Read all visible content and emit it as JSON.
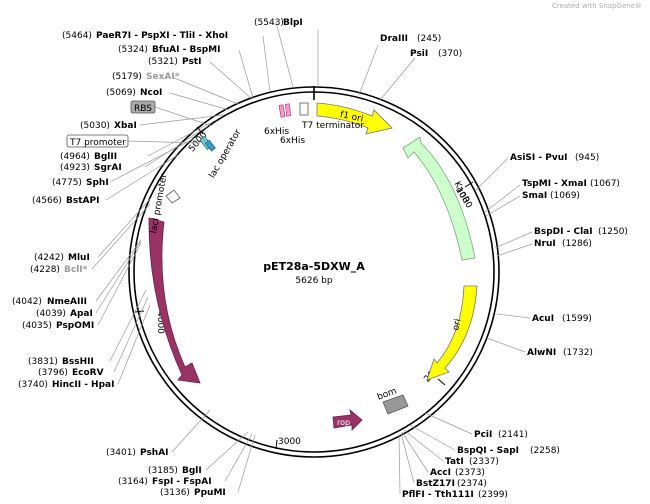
{
  "watermark": "Created with SnapGene®",
  "plasmid": {
    "name": "pET28a-5DXW_A",
    "size_label": "5626 bp"
  },
  "ticks": {
    "t1000": "1000",
    "t2000": "2000",
    "t3000": "3000",
    "t4000": "4000",
    "t5000": "5000"
  },
  "features": {
    "f1_ori": "f1 ori",
    "kanR": "KanR",
    "ori": "ori",
    "rop": "rop",
    "bom": "bom",
    "lacI": "lacI",
    "lacI_promoter": "lacI promoter",
    "lac_operator": "lac operator",
    "his1": "6xHis",
    "his2": "6xHis",
    "t7_terminator": "T7 terminator",
    "rbs": "RBS",
    "t7_promoter": "T7 promoter"
  },
  "sites": {
    "blpi_pos": "(5543)",
    "blpi_name": "BlpI",
    "dra_name": "DraIII",
    "dra_pos": "(245)",
    "psi_name": "PsiI",
    "psi_pos": "(370)",
    "asisi_name": "AsiSI - PvuI",
    "asisi_pos": "(945)",
    "tspmi_name": "TspMI - XmaI",
    "tspmi_pos": "(1067)",
    "smai_name": "SmaI",
    "smai_pos": "(1069)",
    "bspdi_name": "BspDI - ClaI",
    "bspdi_pos": "(1250)",
    "nrui_name": "NruI",
    "nrui_pos": "(1286)",
    "acui_name": "AcuI",
    "acui_pos": "(1599)",
    "alwni_name": "AlwNI",
    "alwni_pos": "(1732)",
    "pcii_name": "PciI",
    "pcii_pos": "(2141)",
    "bspqi_name": "BspQI - SapI",
    "bspqi_pos": "(2258)",
    "tati_name": "TatI",
    "tati_pos": "(2337)",
    "acci_name": "AccI",
    "acci_pos": "(2373)",
    "bstz_name": "BstZ17I",
    "bstz_pos": "(2374)",
    "pflfi_name": "PflFI - Tth111I",
    "pflfi_pos": "(2399)",
    "pae_pos": "(5464)",
    "pae_name": "PaeR7I - PspXI - TliI - XhoI",
    "bfuai_pos": "(5324)",
    "bfuai_name": "BfuAI - BspMI",
    "psti_pos": "(5321)",
    "psti_name": "PstI",
    "sexai_pos": "(5179)",
    "sexai_name": "SexAI*",
    "ncoi_pos": "(5069)",
    "ncoi_name": "NcoI",
    "xbai_pos": "(5030)",
    "xbai_name": "XbaI",
    "bglii_pos": "(4964)",
    "bglii_name": "BglII",
    "sgrai_pos": "(4923)",
    "sgrai_name": "SgrAI",
    "sphi_pos": "(4775)",
    "sphi_name": "SphI",
    "bstapi_pos": "(4566)",
    "bstapi_name": "BstAPI",
    "mlui_pos": "(4242)",
    "mlui_name": "MluI",
    "bcli_pos": "(4228)",
    "bcli_name": "BclI*",
    "nmeaiii_pos": "(4042)",
    "nmeaiii_name": "NmeAIII",
    "apai_pos": "(4039)",
    "apai_name": "ApaI",
    "pspomi_pos": "(4035)",
    "pspomi_name": "PspOMI",
    "bsshii_pos": "(3831)",
    "bsshii_name": "BssHII",
    "ecorv_pos": "(3796)",
    "ecorv_name": "EcoRV",
    "hincii_pos": "(3740)",
    "hincii_name": "HincII - HpaI",
    "pshai_pos": "(3401)",
    "pshai_name": "PshAI",
    "bgli_pos": "(3185)",
    "bgli_name": "BglI",
    "fspi_pos": "(3164)",
    "fspi_name": "FspI - FspAI",
    "ppumi_pos": "(3136)",
    "ppumi_name": "PpuMI"
  }
}
